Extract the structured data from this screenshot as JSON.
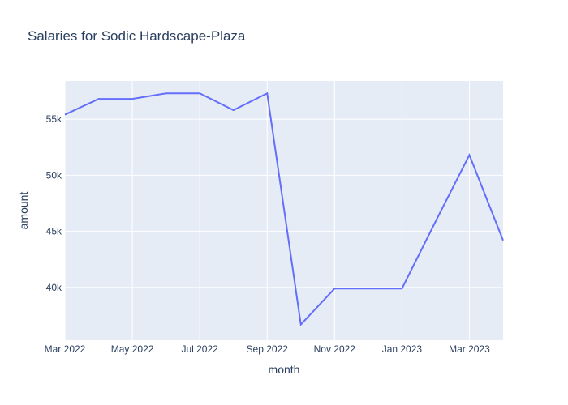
{
  "chart_data": {
    "type": "line",
    "title": "Salaries for Sodic Hardscape-Plaza",
    "xlabel": "month",
    "ylabel": "amount",
    "x": [
      "2022-03",
      "2022-04",
      "2022-05",
      "2022-06",
      "2022-07",
      "2022-08",
      "2022-09",
      "2022-10",
      "2022-11",
      "2022-12",
      "2023-01",
      "2023-02",
      "2023-03",
      "2023-04"
    ],
    "series": [
      {
        "values": [
          55400,
          56800,
          56800,
          57300,
          57300,
          55800,
          57300,
          36700,
          39900,
          39900,
          39900,
          45900,
          51800,
          44200
        ]
      }
    ],
    "xlim": [
      "2022-03",
      "2023-04"
    ],
    "ylim": [
      35300,
      58400
    ],
    "x_ticks": [
      {
        "value": "2022-03",
        "label": "Mar 2022"
      },
      {
        "value": "2022-05",
        "label": "May 2022"
      },
      {
        "value": "2022-07",
        "label": "Jul 2022"
      },
      {
        "value": "2022-09",
        "label": "Sep 2022"
      },
      {
        "value": "2022-11",
        "label": "Nov 2022"
      },
      {
        "value": "2023-01",
        "label": "Jan 2023"
      },
      {
        "value": "2023-03",
        "label": "Mar 2023"
      }
    ],
    "y_ticks": [
      {
        "value": 40000,
        "label": "40k"
      },
      {
        "value": 45000,
        "label": "45k"
      },
      {
        "value": 50000,
        "label": "50k"
      },
      {
        "value": 55000,
        "label": "55k"
      }
    ],
    "grid": true,
    "colors": {
      "plot_background": "#e5ecf6",
      "grid": "#ffffff",
      "line": "#636efa",
      "text": "#2a3f5f"
    }
  }
}
